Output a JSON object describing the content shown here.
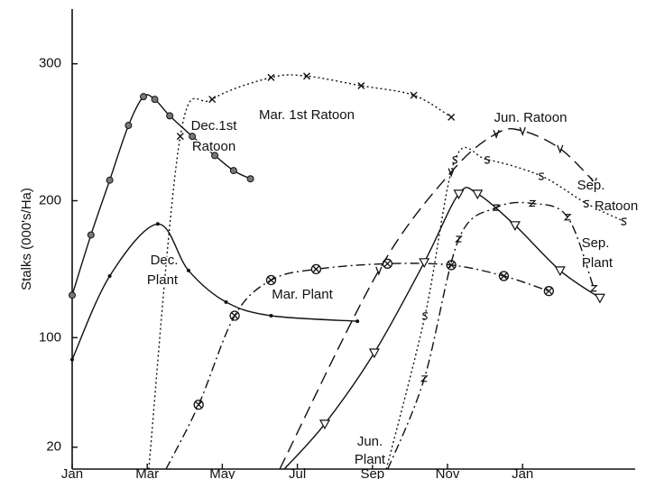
{
  "chart_data": {
    "type": "line",
    "y_label": "Stalks (000's/Ha)",
    "xlim": [
      0,
      15
    ],
    "ylim": [
      4,
      340
    ],
    "xticks": [
      {
        "value": 0,
        "label": "Jan"
      },
      {
        "value": 2,
        "label": "Mar"
      },
      {
        "value": 4,
        "label": "May"
      },
      {
        "value": 6,
        "label": "Jul"
      },
      {
        "value": 8,
        "label": "Sep"
      },
      {
        "value": 10,
        "label": "Nov"
      },
      {
        "value": 12,
        "label": "Jan"
      }
    ],
    "yticks": [
      20,
      100,
      200,
      300
    ],
    "annotations": [
      "Dec.1st",
      "Ratoon",
      "Mar. 1st Ratoon",
      "Jun. Ratoon",
      "Sep.",
      "Ratoon",
      "Dec.",
      "Plant",
      "Mar. Plant",
      "Sep.",
      "Plant",
      "Jun.",
      "Plant"
    ],
    "series": [
      {
        "color": "#111",
        "dash": "solid",
        "marker": "ring-dot",
        "x": [
          0,
          0.5,
          1,
          1.5,
          1.9,
          2.2,
          2.6,
          3.2,
          3.8,
          4.3,
          4.75
        ],
        "values": [
          131,
          175,
          215,
          255,
          276,
          274,
          262,
          247,
          233,
          222,
          216
        ]
      },
      {
        "color": "#111",
        "dash": "dotted",
        "marker": "cross",
        "x": [
          2.04,
          2.88,
          3.73,
          5.3,
          6.25,
          7.7,
          9.1,
          10.1
        ],
        "values": [
          4,
          247,
          274,
          290,
          291,
          284,
          277,
          261
        ]
      },
      {
        "color": "#111",
        "dash": "solid",
        "marker": "dot",
        "x": [
          0,
          1,
          2.28,
          3.1,
          4.1,
          5.3,
          7.6
        ],
        "values": [
          84,
          145,
          183,
          149,
          126,
          116,
          112
        ]
      },
      {
        "color": "#111",
        "dash": "dashdot",
        "marker": "circle-cross",
        "x": [
          2.5,
          3.37,
          4.33,
          5.3,
          6.5,
          8.4,
          10.1,
          11.5,
          12.7
        ],
        "values": [
          4,
          51,
          116,
          142,
          150,
          154,
          153,
          145,
          134
        ]
      },
      {
        "color": "#111",
        "dash": "dashed",
        "marker": "v",
        "x": [
          5.53,
          8.17,
          10.1,
          11.3,
          12.0,
          13.0,
          13.9
        ],
        "values": [
          4,
          149,
          221,
          249,
          251,
          238,
          214
        ]
      },
      {
        "color": "#111",
        "dash": "solid",
        "marker": "triangle",
        "x": [
          5.65,
          6.73,
          8.05,
          9.38,
          10.3,
          10.8,
          11.8,
          13.0,
          14.06
        ],
        "values": [
          4,
          37,
          89,
          155,
          205,
          205,
          182,
          149,
          129
        ]
      },
      {
        "color": "#111",
        "dash": "dotted",
        "marker": "s",
        "x": [
          8.37,
          9.4,
          10.2,
          11.06,
          12.5,
          13.7,
          14.7
        ],
        "values": [
          4,
          116,
          230,
          230,
          218,
          198,
          185
        ]
      },
      {
        "color": "#111",
        "dash": "dashdot",
        "marker": "z",
        "x": [
          8.41,
          9.38,
          10.3,
          11.3,
          12.26,
          13.2,
          13.9
        ],
        "values": [
          4,
          70,
          172,
          195,
          198,
          188,
          136
        ]
      }
    ]
  }
}
